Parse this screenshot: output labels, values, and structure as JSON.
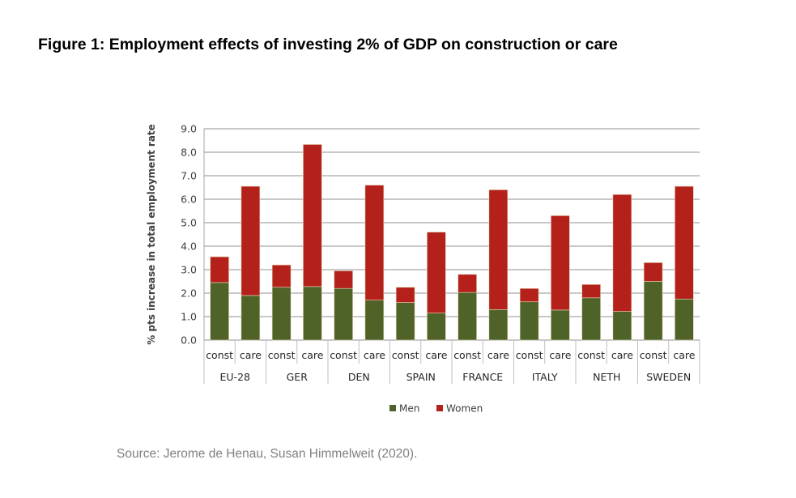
{
  "title": "Figure 1: Employment effects of investing 2% of GDP on construction or care",
  "source": "Source: Jerome de Henau, Susan Himmelweit (2020).",
  "chart_data": {
    "type": "bar",
    "stacked": true,
    "ylabel": "% pts increase in total employment rate",
    "ylim": [
      0,
      9
    ],
    "yticks": [
      "0.0",
      "1.0",
      "2.0",
      "3.0",
      "4.0",
      "5.0",
      "6.0",
      "7.0",
      "8.0",
      "9.0"
    ],
    "grid": true,
    "groups": [
      "EU-28",
      "GER",
      "DEN",
      "SPAIN",
      "FRANCE",
      "ITALY",
      "NETH",
      "SWEDEN"
    ],
    "subcategories": [
      "const",
      "care"
    ],
    "series": [
      {
        "name": "Men",
        "color": "#4f6228",
        "values": [
          [
            2.45,
            1.9
          ],
          [
            2.25,
            2.28
          ],
          [
            2.2,
            1.7
          ],
          [
            1.6,
            1.15
          ],
          [
            2.03,
            1.3
          ],
          [
            1.63,
            1.28
          ],
          [
            1.8,
            1.22
          ],
          [
            2.5,
            1.75
          ]
        ]
      },
      {
        "name": "Women",
        "color": "#b3211a",
        "values": [
          [
            1.1,
            4.65
          ],
          [
            0.95,
            6.05
          ],
          [
            0.75,
            4.9
          ],
          [
            0.65,
            3.45
          ],
          [
            0.77,
            5.1
          ],
          [
            0.57,
            4.02
          ],
          [
            0.57,
            4.98
          ],
          [
            0.8,
            4.8
          ]
        ]
      }
    ],
    "legend_position": "bottom"
  }
}
